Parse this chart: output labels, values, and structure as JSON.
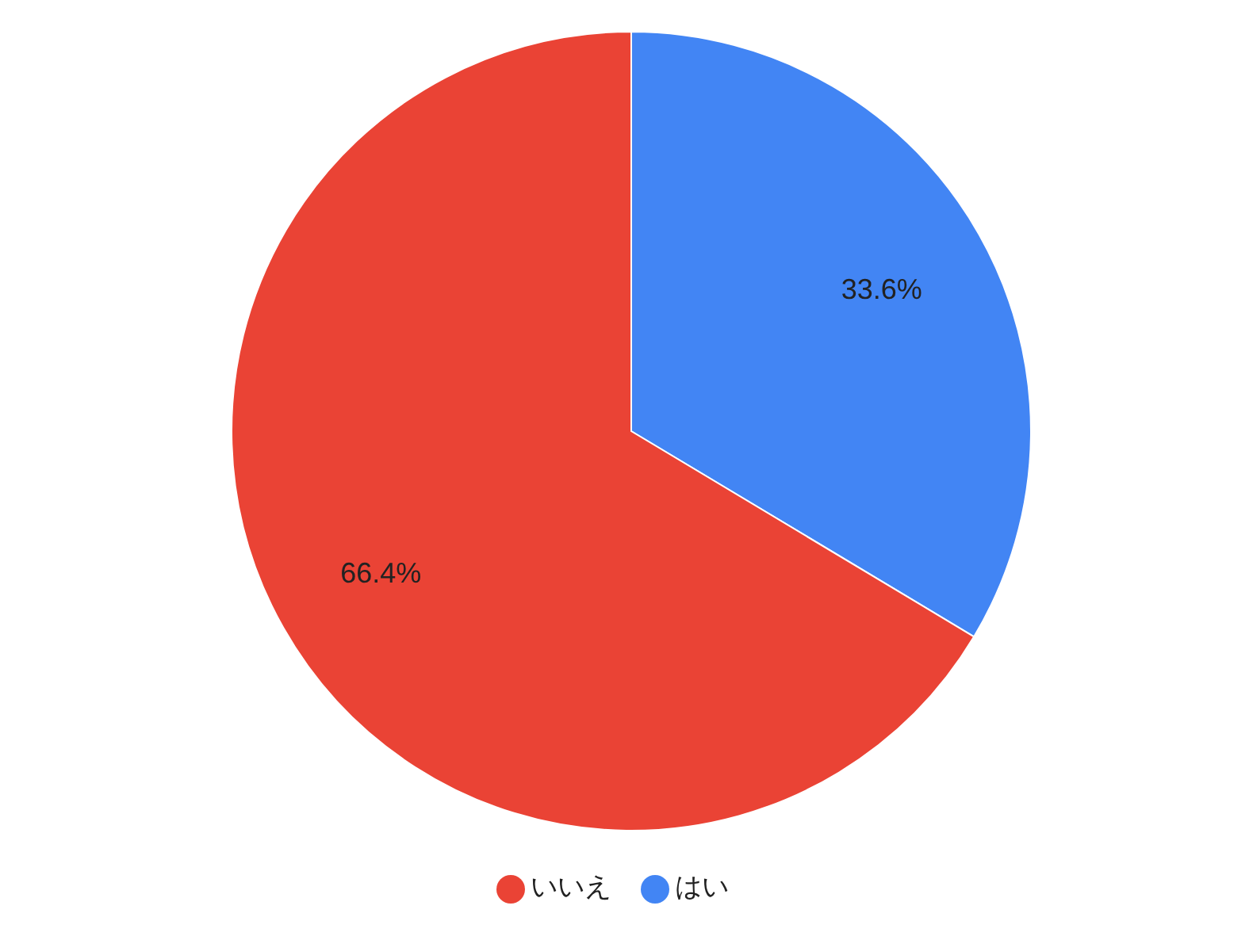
{
  "chart_data": {
    "type": "pie",
    "categories": [
      "はい",
      "いいえ"
    ],
    "values": [
      33.6,
      66.4
    ],
    "colors": [
      "#4285f4",
      "#ea4335"
    ],
    "value_labels": [
      "33.6%",
      "66.4%"
    ],
    "legend": "bottom"
  }
}
